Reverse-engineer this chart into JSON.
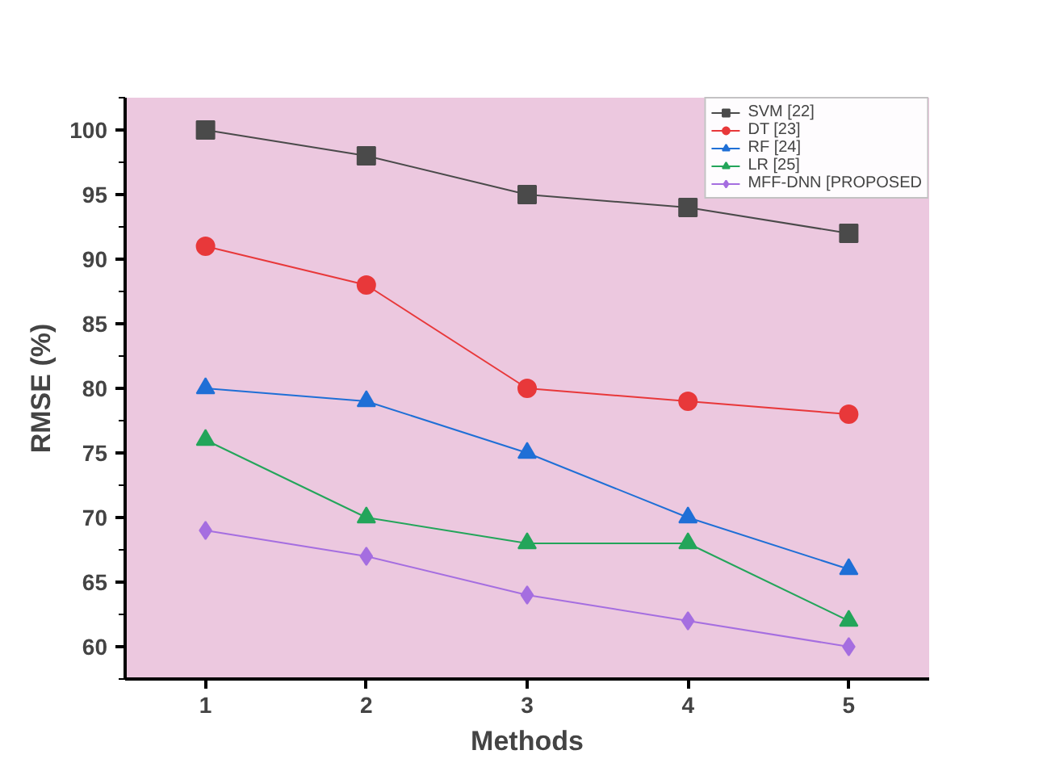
{
  "chart_data": {
    "type": "line",
    "xlabel": "Methods",
    "ylabel": "RMSE (%)",
    "x": [
      1,
      2,
      3,
      4,
      5
    ],
    "xlim": [
      0.5,
      5.5
    ],
    "xticks": [
      1,
      2,
      3,
      4,
      5
    ],
    "ylim": [
      57.5,
      102.5
    ],
    "yticks": [
      60,
      65,
      70,
      75,
      80,
      85,
      90,
      95,
      100
    ],
    "series": [
      {
        "name": "SVM [22]",
        "color": "#4a4a4a",
        "marker": "square",
        "values": [
          100,
          98,
          95,
          94,
          92
        ]
      },
      {
        "name": "DT [23]",
        "color": "#e8383a",
        "marker": "circle",
        "values": [
          91,
          88,
          80,
          79,
          78
        ]
      },
      {
        "name": "RF [24]",
        "color": "#1f6fd6",
        "marker": "triangle",
        "values": [
          80,
          79,
          75,
          70,
          66
        ]
      },
      {
        "name": "LR [25]",
        "color": "#23a55a",
        "marker": "triangle",
        "values": [
          76,
          70,
          68,
          68,
          62
        ]
      },
      {
        "name": "MFF-DNN [PROPOSED",
        "color": "#a56ee0",
        "marker": "diamond",
        "values": [
          69,
          67,
          64,
          62,
          60
        ]
      }
    ],
    "grid": false,
    "legend": "top right",
    "line_style": "solid"
  }
}
